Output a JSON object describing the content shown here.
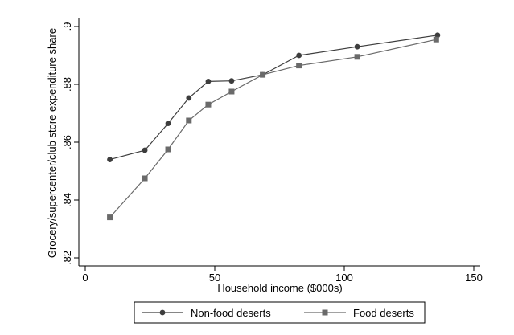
{
  "chart_data": {
    "type": "line",
    "xlabel": "Household income ($000s)",
    "ylabel": "Grocery/supercenter/club store expenditure share",
    "xlim": [
      0,
      150
    ],
    "ylim": [
      0.82,
      0.9
    ],
    "x_ticks": [
      0,
      50,
      100,
      150
    ],
    "x_tick_labels": [
      "0",
      "50",
      "100",
      "150"
    ],
    "y_ticks": [
      0.82,
      0.84,
      0.86,
      0.88,
      0.9
    ],
    "y_tick_labels": [
      ".82",
      ".84",
      ".86",
      ".88",
      ".9"
    ],
    "grid": false,
    "legend_position": "bottom",
    "series": [
      {
        "name": "Non-food deserts",
        "marker": "circle",
        "color": "#3d3d3d",
        "x": [
          9.5,
          23,
          32,
          40,
          47.5,
          56.5,
          68.5,
          82.5,
          105,
          136
        ],
        "y": [
          0.854,
          0.8572,
          0.8665,
          0.8753,
          0.881,
          0.8812,
          0.8833,
          0.89,
          0.893,
          0.897
        ]
      },
      {
        "name": "Food deserts",
        "marker": "square",
        "color": "#6a6a6a",
        "x": [
          9.5,
          23,
          32,
          40,
          47.5,
          56.5,
          68.5,
          82.5,
          105,
          135.5
        ],
        "y": [
          0.834,
          0.8475,
          0.8575,
          0.8675,
          0.873,
          0.8775,
          0.8833,
          0.8865,
          0.8895,
          0.8955
        ]
      }
    ]
  }
}
